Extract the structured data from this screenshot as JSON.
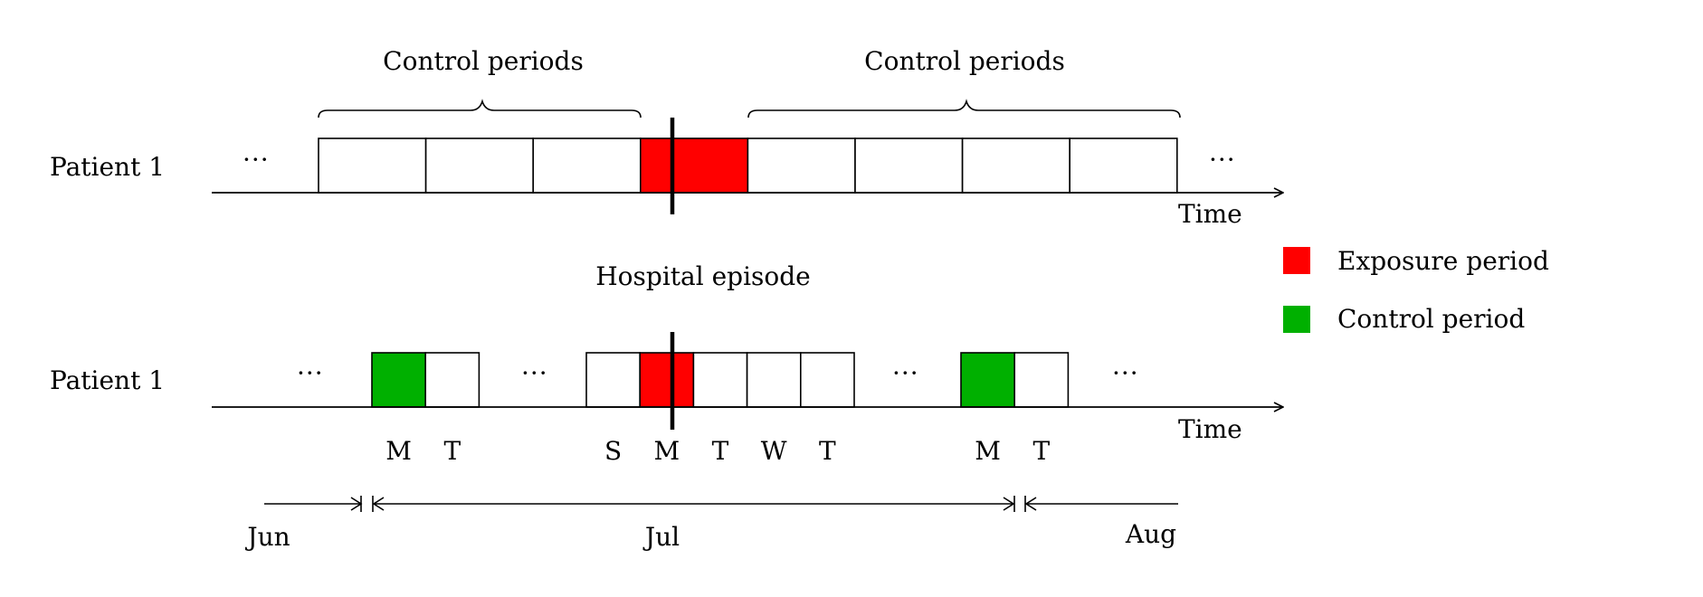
{
  "top_row": {
    "patient_label": "Patient 1",
    "left_brace_label": "Control periods",
    "right_brace_label": "Control periods",
    "time_label": "Time",
    "ellipsis": "···",
    "blocks": [
      {
        "color": "none"
      },
      {
        "color": "none"
      },
      {
        "color": "none"
      },
      {
        "color": "exposure"
      },
      {
        "color": "none"
      },
      {
        "color": "none"
      },
      {
        "color": "none"
      },
      {
        "color": "none"
      }
    ]
  },
  "episode_label": "Hospital episode",
  "bottom_row": {
    "patient_label": "Patient 1",
    "time_label": "Time",
    "ellipsis": "···",
    "groups": [
      {
        "days": [
          {
            "label": "M",
            "color": "control"
          },
          {
            "label": "T",
            "color": "none"
          }
        ]
      },
      {
        "days": [
          {
            "label": "S",
            "color": "none"
          },
          {
            "label": "M",
            "color": "exposure"
          },
          {
            "label": "T",
            "color": "none"
          },
          {
            "label": "W",
            "color": "none"
          },
          {
            "label": "T",
            "color": "none"
          }
        ]
      },
      {
        "days": [
          {
            "label": "M",
            "color": "control"
          },
          {
            "label": "T",
            "color": "none"
          }
        ]
      }
    ]
  },
  "months": [
    "Jun",
    "Jul",
    "Aug"
  ],
  "legend": [
    {
      "label": "Exposure period",
      "color": "#ff0000"
    },
    {
      "label": "Control period",
      "color": "#00b000"
    }
  ],
  "colors": {
    "exposure": "#ff0000",
    "control": "#00b000",
    "none": "#ffffff",
    "stroke": "#000000"
  }
}
